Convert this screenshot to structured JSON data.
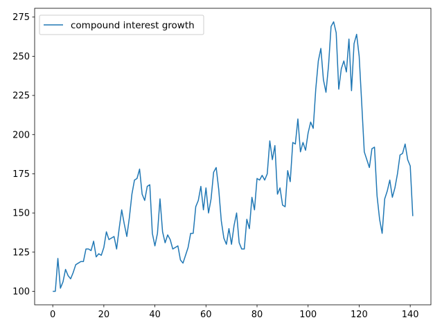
{
  "chart_data": {
    "type": "line",
    "title": "",
    "xlabel": "",
    "ylabel": "",
    "xlim": [
      -7.1,
      148.1
    ],
    "ylim": [
      91.4,
      280.6
    ],
    "xticks": [
      0,
      20,
      40,
      60,
      80,
      100,
      120,
      140
    ],
    "yticks": [
      100,
      125,
      150,
      175,
      200,
      225,
      250,
      275
    ],
    "grid": false,
    "legend": "top-left",
    "series": [
      {
        "name": "compound interest growth",
        "color": "#1f77b4",
        "x": [
          0,
          1,
          2,
          3,
          4,
          5,
          6,
          7,
          8,
          9,
          10,
          11,
          12,
          13,
          14,
          15,
          16,
          17,
          18,
          19,
          20,
          21,
          22,
          23,
          24,
          25,
          26,
          27,
          28,
          29,
          30,
          31,
          32,
          33,
          34,
          35,
          36,
          37,
          38,
          39,
          40,
          41,
          42,
          43,
          44,
          45,
          46,
          47,
          48,
          49,
          50,
          51,
          52,
          53,
          54,
          55,
          56,
          57,
          58,
          59,
          60,
          61,
          62,
          63,
          64,
          65,
          66,
          67,
          68,
          69,
          70,
          71,
          72,
          73,
          74,
          75,
          76,
          77,
          78,
          79,
          80,
          81,
          82,
          83,
          84,
          85,
          86,
          87,
          88,
          89,
          90,
          91,
          92,
          93,
          94,
          95,
          96,
          97,
          98,
          99,
          100,
          101,
          102,
          103,
          104,
          105,
          106,
          107,
          108,
          109,
          110,
          111,
          112,
          113,
          114,
          115,
          116,
          117,
          118,
          119,
          120,
          121,
          122,
          123,
          124,
          125,
          126,
          127,
          128,
          129,
          130,
          131,
          132,
          133,
          134,
          135,
          136,
          137,
          138,
          139,
          140,
          141
        ],
        "y": [
          100,
          100,
          121,
          102,
          106,
          114,
          110,
          108,
          112,
          117,
          118,
          119,
          119,
          127,
          127,
          126,
          132,
          122,
          124,
          123,
          128,
          138,
          133,
          134,
          135,
          127,
          140,
          152,
          143,
          135,
          147,
          162,
          171,
          172,
          178,
          162,
          158,
          167,
          168,
          137,
          129,
          137,
          159,
          138,
          131,
          136,
          133,
          127,
          128,
          129,
          120,
          118,
          123,
          128,
          137,
          137,
          154,
          158,
          167,
          152,
          166,
          150,
          159,
          176,
          179,
          165,
          145,
          134,
          130,
          140,
          130,
          142,
          150,
          131,
          127,
          127,
          146,
          140,
          160,
          152,
          172,
          171,
          174,
          171,
          175,
          196,
          184,
          193,
          162,
          166,
          155,
          154,
          177,
          170,
          195,
          194,
          210,
          189,
          195,
          190,
          201,
          208,
          204,
          229,
          247,
          255,
          235,
          227,
          244,
          269,
          272,
          265,
          229,
          242,
          247,
          240,
          261,
          228,
          258,
          264,
          250,
          220,
          189,
          184,
          179,
          191,
          192,
          161,
          146,
          137,
          159,
          164,
          171,
          160,
          166,
          175,
          187,
          188,
          194,
          184,
          180,
          148
        ]
      }
    ]
  }
}
